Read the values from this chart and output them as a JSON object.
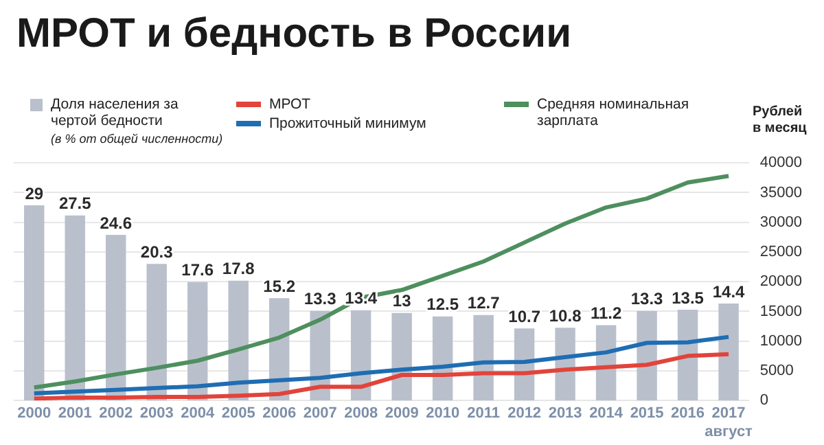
{
  "chart_data": {
    "type": "bar",
    "title": "МРОТ и бедность в России",
    "categories": [
      "2000",
      "2001",
      "2002",
      "2003",
      "2004",
      "2005",
      "2006",
      "2007",
      "2008",
      "2009",
      "2010",
      "2011",
      "2012",
      "2013",
      "2014",
      "2015",
      "2016",
      "2017\nавгуст"
    ],
    "series": [
      {
        "name": "Доля населения за чертой бедности",
        "color": "#b9c0cc",
        "values": [
          29,
          27.5,
          24.6,
          20.3,
          17.6,
          17.8,
          15.2,
          13.3,
          13.4,
          13,
          12.5,
          12.7,
          10.7,
          10.8,
          11.2,
          13.3,
          13.5,
          14.4
        ],
        "value_labels": [
          "29",
          "27.5",
          "24.6",
          "20.3",
          "17.6",
          "17.8",
          "15.2",
          "13.3",
          "13.4",
          "13",
          "12.5",
          "12.7",
          "10.7",
          "10.8",
          "11.2",
          "13.3",
          "13.5",
          "14.4"
        ]
      },
      {
        "name": "МРОТ",
        "type": "line",
        "axis": "y2",
        "color": "#e2433a",
        "values": [
          300,
          500,
          500,
          600,
          600,
          800,
          1100,
          2300,
          2300,
          4300,
          4300,
          4600,
          4600,
          5200,
          5600,
          6000,
          7500,
          7800
        ]
      },
      {
        "name": "Прожиточный минимум",
        "type": "line",
        "axis": "y2",
        "color": "#1f6db3",
        "values": [
          1200,
          1500,
          1800,
          2100,
          2400,
          3000,
          3400,
          3800,
          4600,
          5200,
          5700,
          6400,
          6500,
          7300,
          8100,
          9700,
          9800,
          10700
        ]
      },
      {
        "name": "Средняя номинальная зарплата",
        "type": "line",
        "axis": "y2",
        "color": "#4e8f5f",
        "values": [
          2200,
          3200,
          4400,
          5500,
          6700,
          8600,
          10600,
          13600,
          17300,
          18600,
          21000,
          23400,
          26600,
          29800,
          32500,
          34000,
          36700,
          37800
        ]
      }
    ],
    "ylim": [
      0,
      35.3
    ],
    "y2lim": [
      0,
      40000
    ],
    "y2ticks": [
      0,
      5000,
      10000,
      15000,
      20000,
      25000,
      30000,
      35000,
      40000
    ],
    "y2label": "Рублей в месяц",
    "annotations": [
      "(в % от общей численности)"
    ],
    "grid": "y",
    "legend": "top",
    "marker": "none",
    "line_style": "solid"
  }
}
